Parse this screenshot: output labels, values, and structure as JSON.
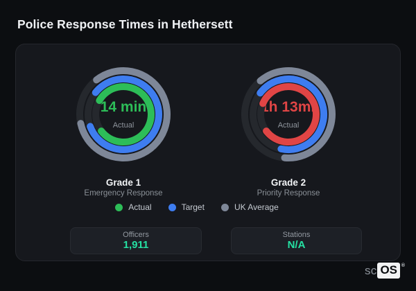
{
  "page_title": "Police Response Times in Hethersett",
  "chart_data": {
    "type": "radial-gauges",
    "track_color": "#25282d",
    "ring_width": 10,
    "legend": [
      {
        "label": "Actual",
        "color": "#2dbd58"
      },
      {
        "label": "Target",
        "color": "#3e7df0"
      },
      {
        "label": "UK Average",
        "color": "#7e8798"
      }
    ],
    "gauges": [
      {
        "name": "Grade 1",
        "subtitle": "Emergency Response",
        "value_text": "14 min",
        "value_color": "#2dbd58",
        "center_label": "Actual",
        "rings": [
          {
            "series": "UK Average",
            "color": "#7e8798",
            "radius": 63,
            "start": -38,
            "end": 258
          },
          {
            "series": "Target",
            "color": "#3e7df0",
            "radius": 51,
            "start": -52,
            "end": 250
          },
          {
            "series": "Actual",
            "color": "#2dbd58",
            "radius": 40,
            "start": -60,
            "end": 233
          }
        ]
      },
      {
        "name": "Grade 2",
        "subtitle": "Priority Response",
        "value_text": "1h 13min",
        "value_color": "#e04545",
        "center_label": "Actual",
        "rings": [
          {
            "series": "UK Average",
            "color": "#7e8798",
            "radius": 63,
            "start": -40,
            "end": 185
          },
          {
            "series": "Target",
            "color": "#3e7df0",
            "radius": 51,
            "start": -53,
            "end": 192
          },
          {
            "series": "Actual",
            "color": "#e04545",
            "radius": 40,
            "start": -67,
            "end": 233
          }
        ]
      }
    ],
    "stats": [
      {
        "label": "Officers",
        "value": "1,911"
      },
      {
        "label": "Stations",
        "value": "N/A"
      }
    ],
    "stat_value_color": "#25e1a3"
  },
  "brand": {
    "prefix": "sc",
    "box": "OS",
    "registered": "®"
  }
}
